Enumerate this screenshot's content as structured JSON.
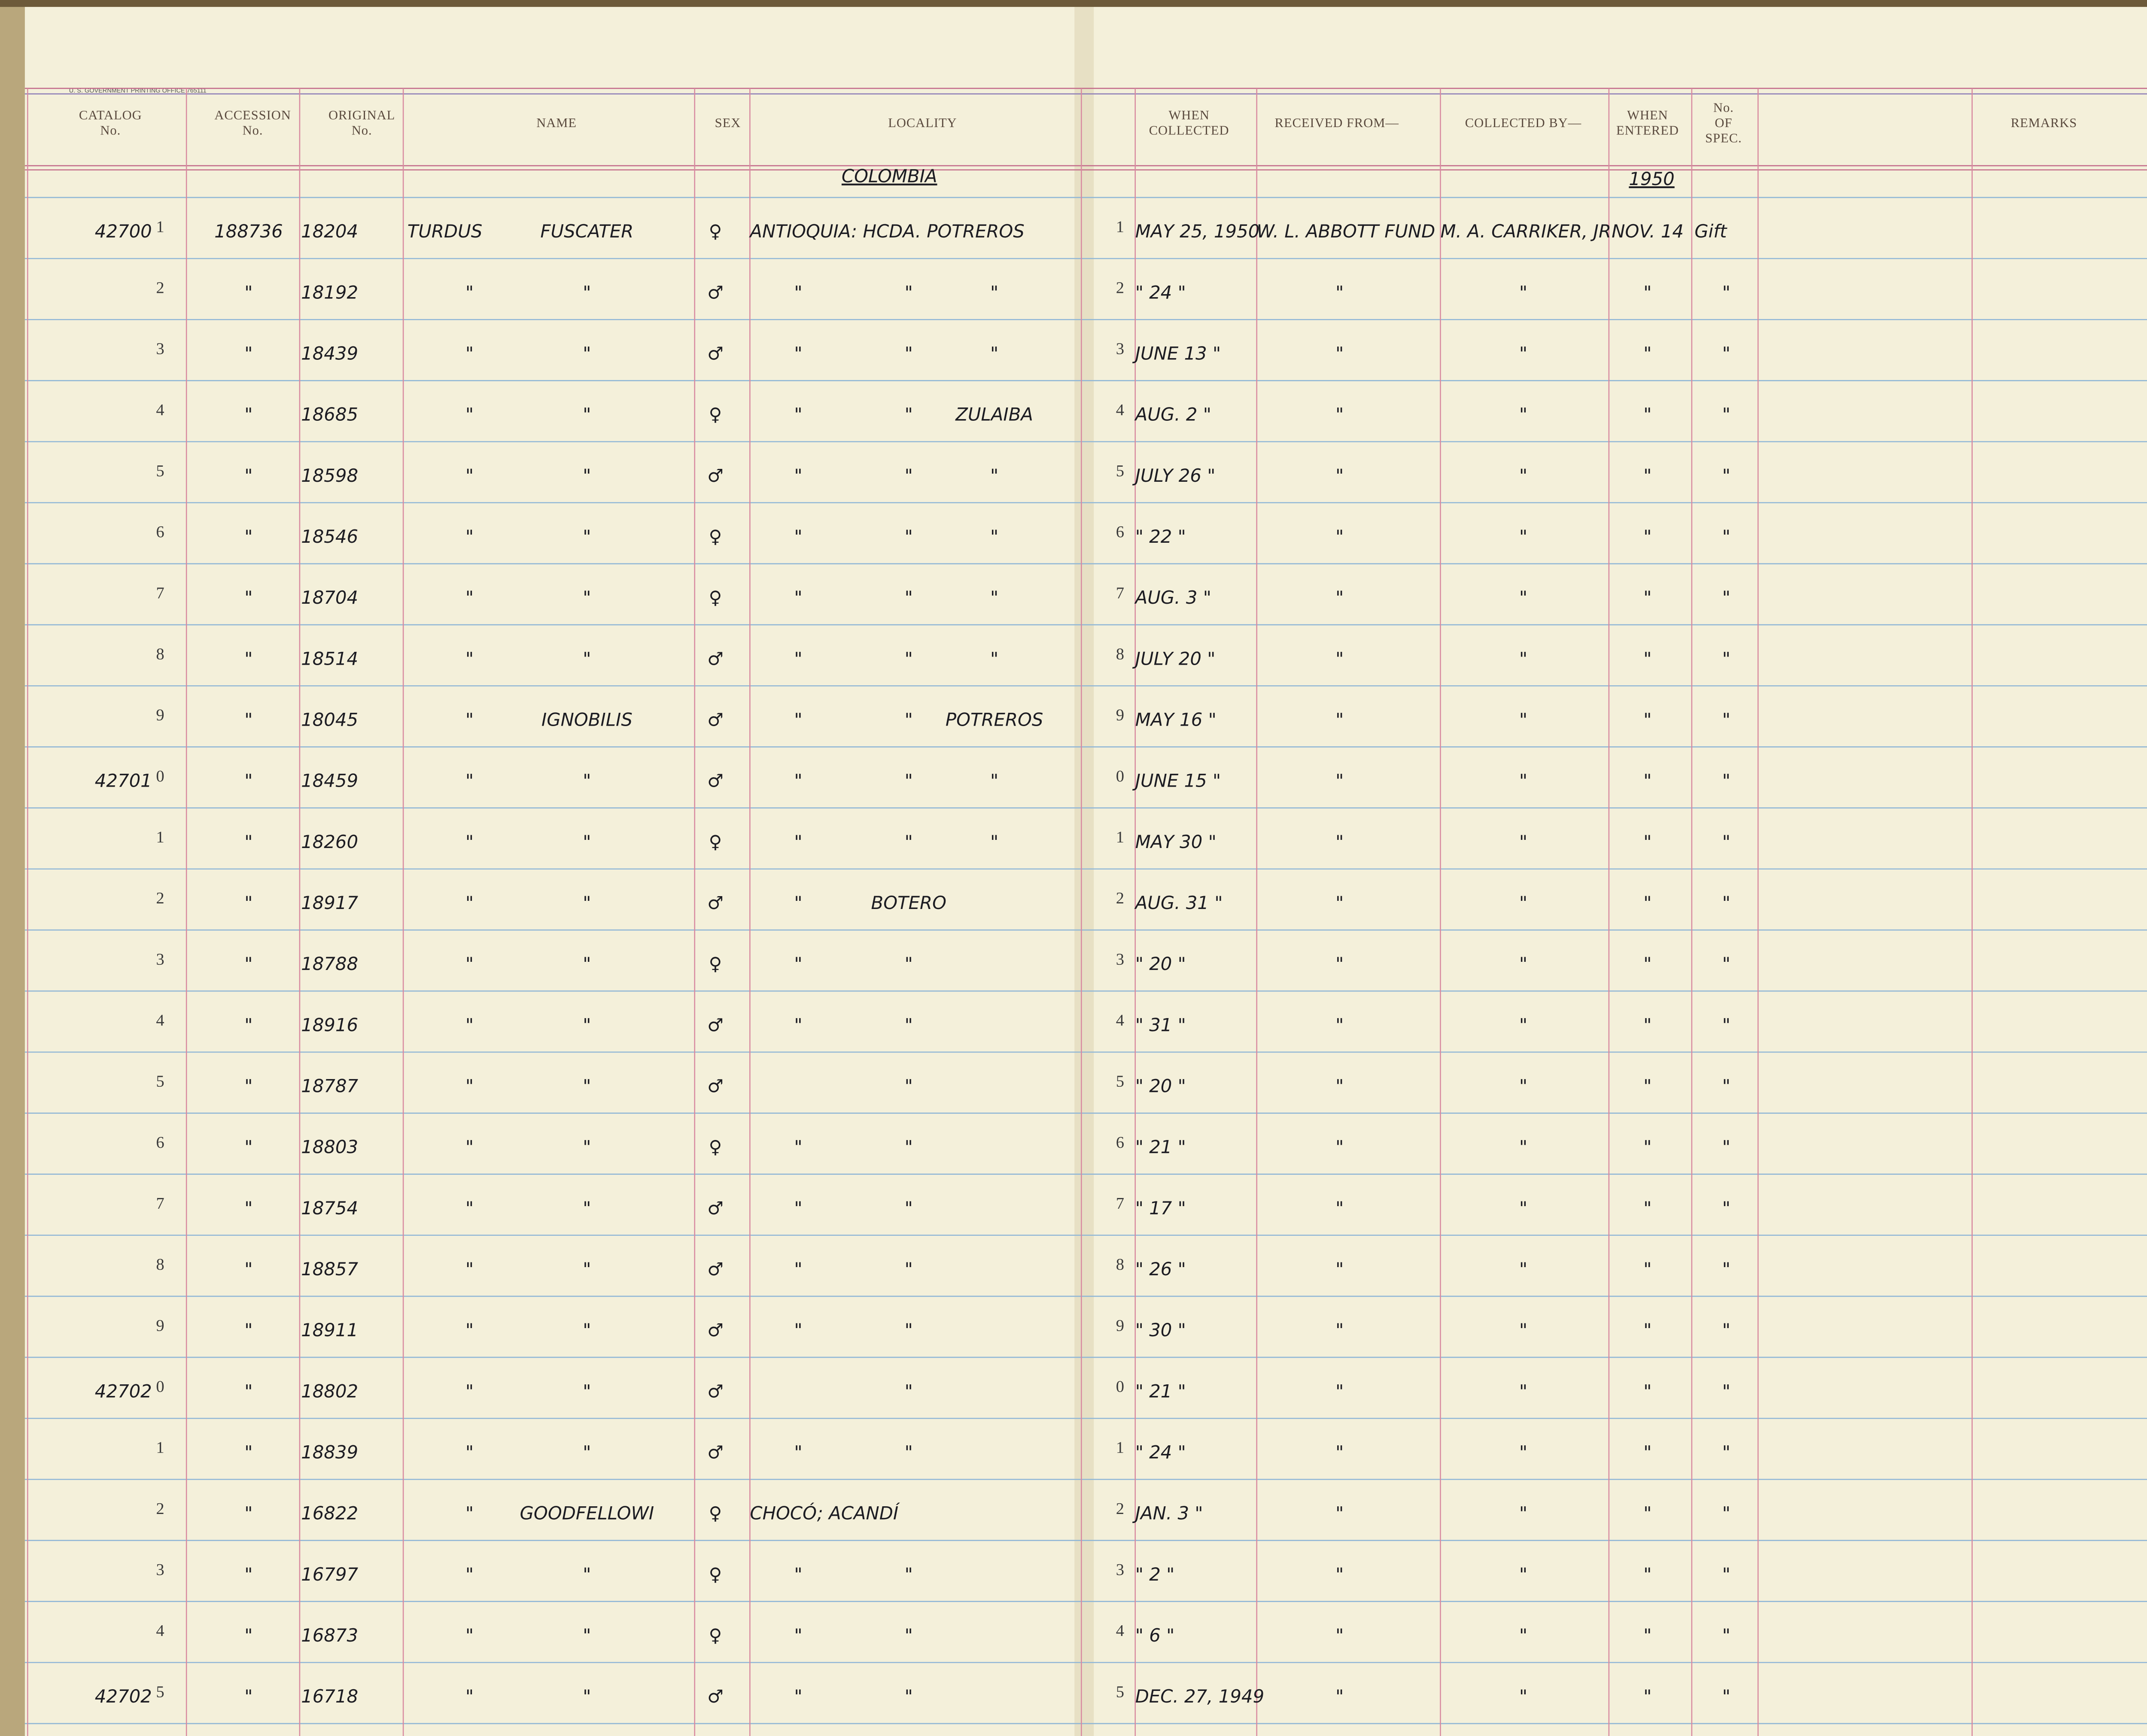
{
  "header": {
    "printer": "U. S. GOVERNMENT PRINTING OFFICE 765111",
    "columns": [
      [
        "CATALOG",
        "No."
      ],
      [
        "ACCESSION",
        "No."
      ],
      [
        "ORIGINAL",
        "No."
      ],
      [
        "NAME"
      ],
      [
        "SEX"
      ],
      [
        "LOCALITY"
      ],
      [
        "WHEN",
        "COLLECTED"
      ],
      [
        "RECEIVED FROM—"
      ],
      [
        "COLLECTED BY—"
      ],
      [
        "WHEN",
        "ENTERED"
      ],
      [
        "No.",
        "OF",
        "SPEC."
      ],
      [
        "REMARKS"
      ]
    ],
    "country": "COLOMBIA",
    "year": "1950"
  },
  "rows": [
    [
      "42700",
      "1",
      "188736",
      "18204",
      "TURDUS",
      "FUSCATER",
      "♀",
      "ANTIOQUIA: HCDA. POTREROS",
      null,
      null,
      "1",
      "MAY 25, 1950",
      "W. L. ABBOTT FUND",
      "M. A. CARRIKER, JR.",
      "NOV. 14",
      "Gift"
    ],
    [
      null,
      "2",
      "\"",
      "18192",
      "\"",
      "\"",
      "♂",
      "\"",
      "\"",
      "\"",
      "2",
      "\" 24 \"",
      "\"",
      "\"",
      "\"",
      "\""
    ],
    [
      null,
      "3",
      "\"",
      "18439",
      "\"",
      "\"",
      "♂",
      "\"",
      "\"",
      "\"",
      "3",
      "JUNE 13 \"",
      "\"",
      "\"",
      "\"",
      "\""
    ],
    [
      null,
      "4",
      "\"",
      "18685",
      "\"",
      "\"",
      "♀",
      "\"",
      "\"",
      "ZULAIBA",
      "4",
      "AUG. 2 \"",
      "\"",
      "\"",
      "\"",
      "\""
    ],
    [
      null,
      "5",
      "\"",
      "18598",
      "\"",
      "\"",
      "♂",
      "\"",
      "\"",
      "\"",
      "5",
      "JULY 26 \"",
      "\"",
      "\"",
      "\"",
      "\""
    ],
    [
      null,
      "6",
      "\"",
      "18546",
      "\"",
      "\"",
      "♀",
      "\"",
      "\"",
      "\"",
      "6",
      "\" 22 \"",
      "\"",
      "\"",
      "\"",
      "\""
    ],
    [
      null,
      "7",
      "\"",
      "18704",
      "\"",
      "\"",
      "♀",
      "\"",
      "\"",
      "\"",
      "7",
      "AUG. 3 \"",
      "\"",
      "\"",
      "\"",
      "\""
    ],
    [
      null,
      "8",
      "\"",
      "18514",
      "\"",
      "\"",
      "♂",
      "\"",
      "\"",
      "\"",
      "8",
      "JULY 20 \"",
      "\"",
      "\"",
      "\"",
      "\""
    ],
    [
      null,
      "9",
      "\"",
      "18045",
      "\"",
      "IGNOBILIS",
      "♂",
      "\"",
      "\"",
      "POTREROS",
      "9",
      "MAY 16 \"",
      "\"",
      "\"",
      "\"",
      "\""
    ],
    [
      "42701",
      "0",
      "\"",
      "18459",
      "\"",
      "\"",
      "♂",
      "\"",
      "\"",
      "\"",
      "0",
      "JUNE 15 \"",
      "\"",
      "\"",
      "\"",
      "\""
    ],
    [
      null,
      "1",
      "\"",
      "18260",
      "\"",
      "\"",
      "♀",
      "\"",
      "\"",
      "\"",
      "1",
      "MAY 30 \"",
      "\"",
      "\"",
      "\"",
      "\""
    ],
    [
      null,
      "2",
      "\"",
      "18917",
      "\"",
      "\"",
      "♂",
      "\"",
      "BOTERO",
      null,
      "2",
      "AUG. 31 \"",
      "\"",
      "\"",
      "\"",
      "\""
    ],
    [
      null,
      "3",
      "\"",
      "18788",
      "\"",
      "\"",
      "♀",
      "\"",
      "\"",
      null,
      "3",
      "\" 20 \"",
      "\"",
      "\"",
      "\"",
      "\""
    ],
    [
      null,
      "4",
      "\"",
      "18916",
      "\"",
      "\"",
      "♂",
      "\"",
      "\"",
      null,
      "4",
      "\" 31 \"",
      "\"",
      "\"",
      "\"",
      "\""
    ],
    [
      null,
      "5",
      "\"",
      "18787",
      "\"",
      "\"",
      "♂",
      null,
      "\"",
      null,
      "5",
      "\" 20 \"",
      "\"",
      "\"",
      "\"",
      "\""
    ],
    [
      null,
      "6",
      "\"",
      "18803",
      "\"",
      "\"",
      "♀",
      "\"",
      "\"",
      null,
      "6",
      "\" 21 \"",
      "\"",
      "\"",
      "\"",
      "\""
    ],
    [
      null,
      "7",
      "\"",
      "18754",
      "\"",
      "\"",
      "♂",
      "\"",
      "\"",
      null,
      "7",
      "\" 17 \"",
      "\"",
      "\"",
      "\"",
      "\""
    ],
    [
      null,
      "8",
      "\"",
      "18857",
      "\"",
      "\"",
      "♂",
      "\"",
      "\"",
      null,
      "8",
      "\" 26 \"",
      "\"",
      "\"",
      "\"",
      "\""
    ],
    [
      null,
      "9",
      "\"",
      "18911",
      "\"",
      "\"",
      "♂",
      "\"",
      "\"",
      null,
      "9",
      "\" 30 \"",
      "\"",
      "\"",
      "\"",
      "\""
    ],
    [
      "42702",
      "0",
      "\"",
      "18802",
      "\"",
      "\"",
      "♂",
      null,
      "\"",
      null,
      "0",
      "\" 21 \"",
      "\"",
      "\"",
      "\"",
      "\""
    ],
    [
      null,
      "1",
      "\"",
      "18839",
      "\"",
      "\"",
      "♂",
      "\"",
      "\"",
      null,
      "1",
      "\" 24 \"",
      "\"",
      "\"",
      "\"",
      "\""
    ],
    [
      null,
      "2",
      "\"",
      "16822",
      "\"",
      "GOODFELLOWI",
      "♀",
      "CHOCÓ; ACANDÍ",
      null,
      null,
      "2",
      "JAN. 3 \"",
      "\"",
      "\"",
      "\"",
      "\""
    ],
    [
      null,
      "3",
      "\"",
      "16797",
      "\"",
      "\"",
      "♀",
      "\"",
      "\"",
      null,
      "3",
      "\" 2 \"",
      "\"",
      "\"",
      "\"",
      "\""
    ],
    [
      null,
      "4",
      "\"",
      "16873",
      "\"",
      "\"",
      "♀",
      "\"",
      "\"",
      null,
      "4",
      "\" 6 \"",
      "\"",
      "\"",
      "\"",
      "\""
    ],
    [
      "42702",
      "5",
      "\"",
      "16718",
      "\"",
      "\"",
      "♂",
      "\"",
      "\"",
      null,
      "5",
      "DEC. 27, 1949",
      "\"",
      "\"",
      "\"",
      "\""
    ]
  ]
}
